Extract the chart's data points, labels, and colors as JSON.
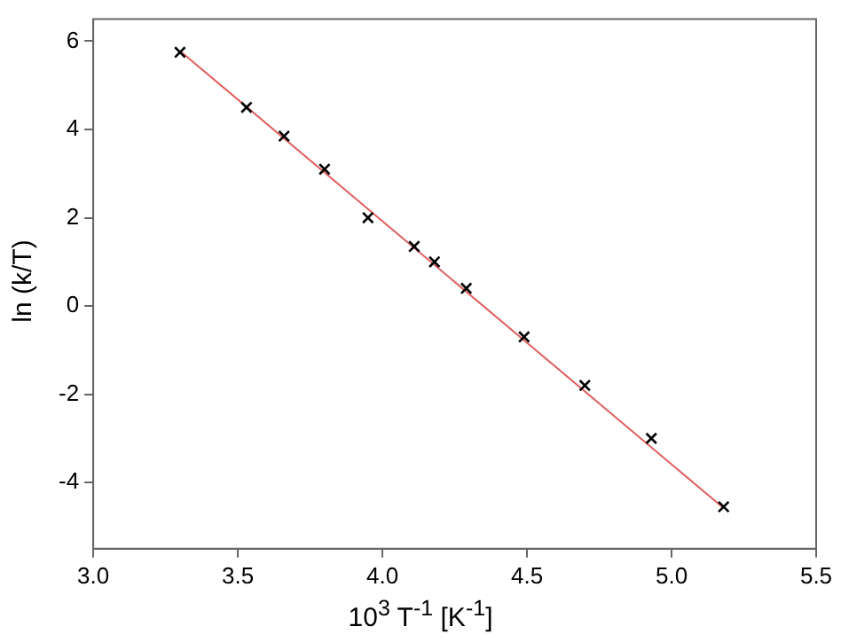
{
  "chart_data": {
    "type": "scatter",
    "xlabel": "10$^{3}$ T$^{-1}$  [K$^{-1}$]",
    "ylabel": "ln (k/T)",
    "marker": "cross",
    "legend": false,
    "grid": false,
    "xlim": [
      3.0,
      5.5
    ],
    "xticks": [
      {
        "value": 3.0,
        "label": "3.0"
      },
      {
        "value": 3.5,
        "label": "3.5"
      },
      {
        "value": 4.0,
        "label": "4.0"
      },
      {
        "value": 4.5,
        "label": "4.5"
      },
      {
        "value": 5.0,
        "label": "5.0"
      },
      {
        "value": 5.5,
        "label": "5.5"
      }
    ],
    "ylim": [
      -5.5,
      6.5
    ],
    "yticks": [
      -4,
      -2,
      0,
      2,
      4,
      6
    ],
    "series": [
      {
        "color": "#000000",
        "x": [
          3.3,
          3.53,
          3.66,
          3.8,
          3.95,
          4.11,
          4.18,
          4.29,
          4.49,
          4.7,
          4.93,
          5.18
        ],
        "values": [
          5.75,
          4.5,
          3.85,
          3.1,
          2.0,
          1.35,
          1.0,
          0.4,
          -0.7,
          -1.8,
          -3.0,
          -4.55
        ]
      },
      {
        "type": "line",
        "color": "#e06060",
        "marker": "none",
        "x": [
          3.3,
          5.18
        ],
        "values": [
          5.78,
          -4.58
        ]
      }
    ]
  }
}
